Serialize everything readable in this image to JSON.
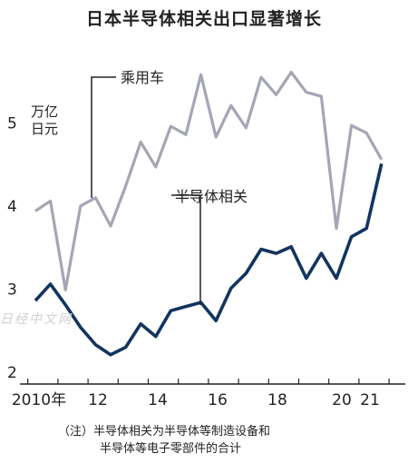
{
  "chart_data": {
    "type": "line",
    "title": "日本半导体相关出口显著增长",
    "unit_label": [
      "万亿",
      "日元"
    ],
    "x_tick_labels": [
      "2010年",
      "12",
      "14",
      "16",
      "18",
      "20",
      "21"
    ],
    "y_tick_labels": [
      "2",
      "3",
      "4",
      "5"
    ],
    "ylim": [
      1.9,
      5.9
    ],
    "grid": false,
    "series": [
      {
        "name": "乘用车",
        "color": "#a4a6b4",
        "values": [
          3.93,
          4.05,
          2.98,
          3.99,
          4.09,
          3.75,
          4.23,
          4.76,
          4.46,
          4.95,
          4.85,
          5.57,
          4.82,
          5.2,
          4.93,
          5.54,
          5.33,
          5.6,
          5.36,
          5.31,
          3.72,
          4.96,
          4.87,
          4.55
        ]
      },
      {
        "name": "半导体相关",
        "color": "#12345f",
        "values": [
          2.85,
          3.05,
          2.8,
          2.53,
          2.32,
          2.2,
          2.29,
          2.57,
          2.42,
          2.73,
          2.78,
          2.83,
          2.61,
          3.0,
          3.18,
          3.47,
          3.42,
          3.5,
          3.12,
          3.42,
          3.12,
          3.62,
          3.72,
          4.5
        ]
      }
    ],
    "annotations": [
      "乘用车",
      "半导体相关"
    ]
  },
  "note": {
    "line1": "（注）半导体相关为半导体等制造设备和",
    "line2": "半导体等电子零部件的合计"
  },
  "watermark": "日经中文网"
}
